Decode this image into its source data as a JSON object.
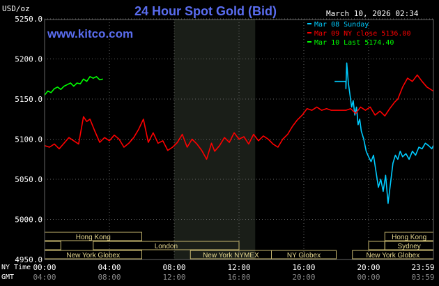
{
  "header": {
    "title": "24 Hour Spot Gold (Bid)",
    "unit_label": "USD/oz",
    "timestamp": "March 10, 2026 02:34",
    "site": "www.kitco.com"
  },
  "legend": [
    {
      "label": "Mar 08 Sunday",
      "color": "#00ccff"
    },
    {
      "label": "Mar 09 NY close 5136.00",
      "color": "#ff0000"
    },
    {
      "label": "Mar 10 Last 5174.40",
      "color": "#00ff00"
    }
  ],
  "x_axis": {
    "row1_label": "NY Time",
    "row2_label": "GMT",
    "ny_ticks": [
      "00:00",
      "04:00",
      "08:00",
      "12:00",
      "16:00",
      "20:00",
      "23:59"
    ],
    "gmt_ticks": [
      "04:00",
      "08:00",
      "12:00",
      "16:00",
      "20:00",
      "00:00",
      "03:59"
    ]
  },
  "sessions": {
    "row1": [
      {
        "label": "Hong Kong",
        "start": 0.0,
        "end": 6.0
      },
      {
        "label": "Hong Kong",
        "start": 21.0,
        "end": 24.0
      }
    ],
    "row2": [
      {
        "label": "",
        "start": 0.0,
        "end": 1.0
      },
      {
        "label": "London",
        "start": 3.0,
        "end": 12.0
      },
      {
        "label": "",
        "start": 20.0,
        "end": 21.0
      },
      {
        "label": "Sydney",
        "start": 21.0,
        "end": 24.0
      }
    ],
    "row3": [
      {
        "label": "New York Globex",
        "start": 0.0,
        "end": 6.0
      },
      {
        "label": "New York NYMEX",
        "start": 9.0,
        "end": 14.0
      },
      {
        "label": "NY Globex",
        "start": 14.0,
        "end": 18.0
      },
      {
        "label": "New York Globex",
        "start": 19.0,
        "end": 24.0
      }
    ]
  },
  "chart_data": {
    "type": "line",
    "ylim": [
      4950,
      5250
    ],
    "yticks": [
      4950,
      5000,
      5050,
      5100,
      5150,
      5200,
      5250
    ],
    "ytick_labels": [
      "4950.0",
      "5000.0",
      "5050.0",
      "5100.0",
      "5150.0",
      "5200.0",
      "5250.0"
    ],
    "xlim_hours": [
      0,
      24
    ],
    "grid": true,
    "shaded_period_hours": [
      8,
      13
    ],
    "series": [
      {
        "name": "Mar 08 Sunday",
        "color": "#00ccff",
        "x": [
          17.9,
          18.6,
          18.6,
          18.65,
          18.75,
          18.85,
          18.95,
          19.05,
          19.15,
          19.25,
          19.35,
          19.45,
          19.55,
          19.7,
          19.85,
          20.0,
          20.15,
          20.3,
          20.45,
          20.6,
          20.75,
          20.9,
          21.05,
          21.2,
          21.35,
          21.5,
          21.65,
          21.8,
          21.95,
          22.1,
          22.3,
          22.5,
          22.7,
          22.9,
          23.1,
          23.3,
          23.5,
          23.7,
          23.9,
          23.99
        ],
        "y": [
          5172,
          5172,
          5163,
          5195,
          5170,
          5155,
          5140,
          5148,
          5130,
          5140,
          5118,
          5125,
          5110,
          5100,
          5085,
          5078,
          5072,
          5080,
          5060,
          5040,
          5050,
          5035,
          5055,
          5020,
          5045,
          5070,
          5080,
          5075,
          5085,
          5078,
          5082,
          5075,
          5085,
          5080,
          5090,
          5088,
          5095,
          5092,
          5088,
          5092
        ]
      },
      {
        "name": "Mar 09 NY close 5136.00",
        "color": "#ff0000",
        "x": [
          0.0,
          0.3,
          0.6,
          0.9,
          1.2,
          1.5,
          1.8,
          2.1,
          2.4,
          2.6,
          2.8,
          3.1,
          3.4,
          3.7,
          4.0,
          4.3,
          4.6,
          4.9,
          5.2,
          5.5,
          5.8,
          6.1,
          6.4,
          6.7,
          7.0,
          7.3,
          7.6,
          7.9,
          8.2,
          8.5,
          8.8,
          9.1,
          9.4,
          9.7,
          10.0,
          10.3,
          10.5,
          10.8,
          11.1,
          11.4,
          11.7,
          12.0,
          12.3,
          12.6,
          12.9,
          13.2,
          13.5,
          13.8,
          14.1,
          14.4,
          14.7,
          15.0,
          15.3,
          15.6,
          15.9,
          16.2,
          16.5,
          16.8,
          17.1,
          17.4,
          17.7,
          18.0,
          18.3,
          18.6,
          18.9,
          19.2,
          19.5,
          19.8,
          20.1,
          20.4,
          20.7,
          21.0,
          21.3,
          21.6,
          21.8,
          22.1,
          22.4,
          22.7,
          23.0,
          23.3,
          23.6,
          23.99
        ],
        "y": [
          5092,
          5090,
          5094,
          5088,
          5095,
          5102,
          5098,
          5094,
          5128,
          5122,
          5125,
          5110,
          5096,
          5102,
          5098,
          5105,
          5100,
          5090,
          5095,
          5102,
          5112,
          5125,
          5096,
          5108,
          5095,
          5098,
          5086,
          5090,
          5096,
          5106,
          5090,
          5100,
          5094,
          5086,
          5075,
          5095,
          5085,
          5092,
          5102,
          5096,
          5108,
          5100,
          5103,
          5094,
          5106,
          5098,
          5104,
          5100,
          5094,
          5090,
          5100,
          5106,
          5116,
          5124,
          5130,
          5138,
          5136,
          5140,
          5136,
          5138,
          5136,
          5136,
          5136,
          5136,
          5138,
          5132,
          5140,
          5136,
          5140,
          5130,
          5135,
          5129,
          5138,
          5146,
          5150,
          5165,
          5176,
          5172,
          5180,
          5172,
          5165,
          5160
        ]
      },
      {
        "name": "Mar 10 Last 5174.40",
        "color": "#00ff00",
        "x": [
          0.0,
          0.2,
          0.4,
          0.6,
          0.8,
          1.0,
          1.2,
          1.4,
          1.6,
          1.8,
          2.0,
          2.2,
          2.4,
          2.6,
          2.8,
          3.0,
          3.2,
          3.4,
          3.6
        ],
        "y": [
          5155,
          5160,
          5158,
          5163,
          5165,
          5162,
          5166,
          5168,
          5170,
          5166,
          5170,
          5169,
          5175,
          5172,
          5178,
          5176,
          5178,
          5174,
          5175
        ]
      }
    ]
  }
}
